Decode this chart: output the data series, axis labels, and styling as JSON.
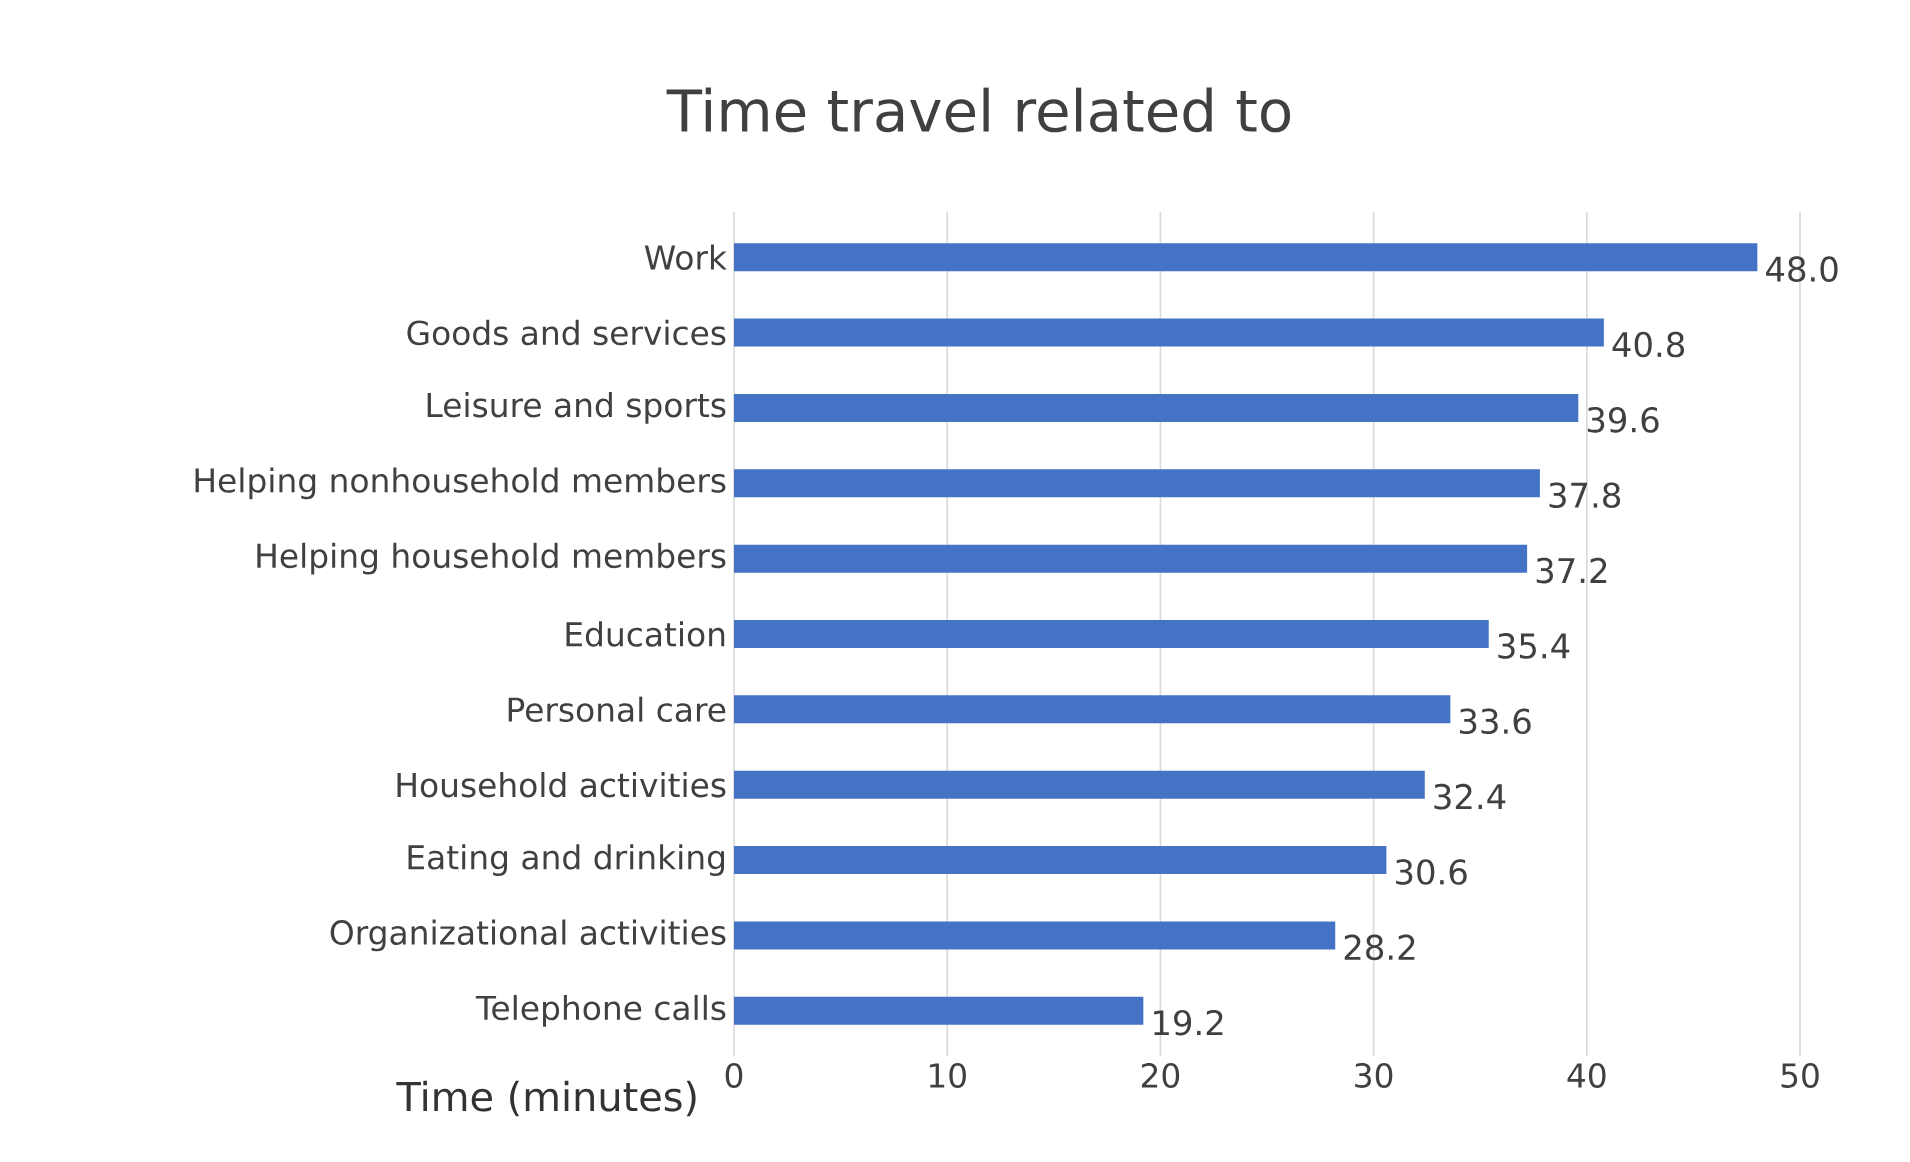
{
  "chart_data": {
    "type": "bar",
    "orientation": "horizontal",
    "title": "Time travel related to",
    "xlabel": "Time (minutes)",
    "categories": [
      "Work",
      "Goods and services",
      "Leisure and sports",
      "Helping nonhousehold members",
      "Helping household members",
      "Education",
      "Personal care",
      "Household activities",
      "Eating and drinking",
      "Organizational activities",
      "Telephone calls"
    ],
    "values": [
      48.0,
      40.8,
      39.6,
      37.8,
      37.2,
      35.4,
      33.6,
      32.4,
      30.6,
      28.2,
      19.2
    ],
    "value_labels": [
      "48.0",
      "40.8",
      "39.6",
      "37.8",
      "37.2",
      "35.4",
      "33.6",
      "32.4",
      "30.6",
      "28.2",
      "19.2"
    ],
    "color": "#4472c4",
    "xlim": [
      0,
      50
    ],
    "xticks": [
      0,
      10,
      20,
      30,
      40,
      50
    ],
    "grid": "x"
  }
}
